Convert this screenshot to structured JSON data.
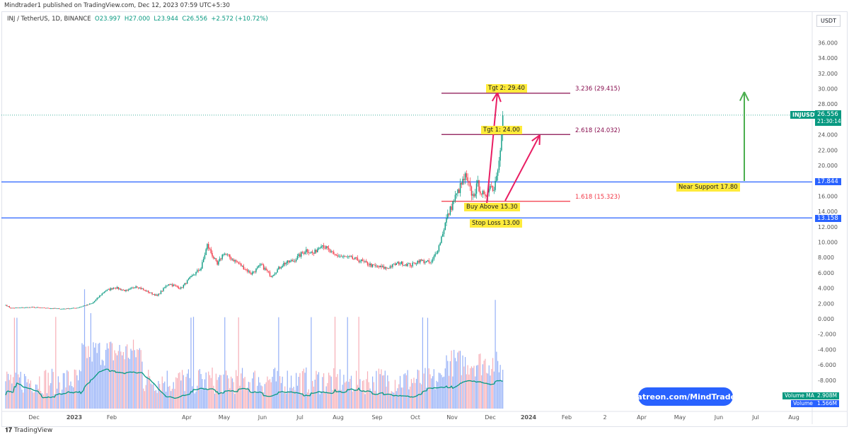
{
  "header": {
    "publisher": "Mindtrader1 published on TradingView.com, Dec 12, 2023 07:59 UTC+5:30"
  },
  "legend": {
    "symbol": "INJ / TetherUS, 1D, BINANCE",
    "open": "O23.997",
    "high": "H27.000",
    "low": "L23.944",
    "close": "C26.556",
    "change": "+2.572 (+10.72%)"
  },
  "price_scale": {
    "currency": "USDT",
    "symbol_tag": "INJUSDT",
    "last_price": "26.556",
    "countdown": "21:30:14",
    "level_1": "17.844",
    "level_2": "13.158"
  },
  "annotations": {
    "tgt2": "Tgt 2: 29.40",
    "tgt1": "Tgt 1: 24.00",
    "buy": "Buy Above 15.30",
    "stop": "Stop Loss 13.00",
    "support": "Near Support 17.80",
    "fib_3236": "3.236 (29.415)",
    "fib_2618": "2.618 (24.032)",
    "fib_1618": "1.618 (15.323)"
  },
  "volume": {
    "ma_label": "Volume MA",
    "ma_value": "2.908M",
    "label": "Volume",
    "value": "1.566M"
  },
  "watermark": {
    "patreon": "patreon.com/MindTrader"
  },
  "footer": {
    "brand": "TradingView"
  },
  "colors": {
    "up": "#089981",
    "down": "#f23645",
    "level": "#2962ff",
    "fib_top": "#880e4f",
    "fib_low": "#f23645",
    "arrow": "#e91e63",
    "green_arrow": "#4caf50"
  },
  "chart_data": {
    "type": "candlestick",
    "title": "INJ / TetherUS, 1D, BINANCE",
    "ylim": [
      -9,
      37
    ],
    "y_ticks": [
      "36.000",
      "34.000",
      "32.000",
      "30.000",
      "28.000",
      "26.000",
      "24.000",
      "22.000",
      "20.000",
      "18.000",
      "16.000",
      "14.000",
      "12.000",
      "10.000",
      "8.000",
      "6.000",
      "4.000",
      "2.000",
      "0.000",
      "-2.000",
      "-4.000",
      "-6.000",
      "-8.000"
    ],
    "x_ticks": [
      "Dec",
      "2023",
      "Feb",
      "Apr",
      "May",
      "Jun",
      "Jul",
      "Aug",
      "Sep",
      "Oct",
      "Nov",
      "Dec",
      "2024",
      "Feb",
      "2",
      "Apr",
      "May",
      "Jun",
      "Jul",
      "Aug"
    ],
    "horizontal_levels": [
      17.844,
      13.158
    ],
    "fib_levels": [
      {
        "ratio": 3.236,
        "price": 29.415
      },
      {
        "ratio": 2.618,
        "price": 24.032
      },
      {
        "ratio": 1.618,
        "price": 15.323
      }
    ],
    "approximate_closes": [
      [
        "2022-11-10",
        1.8
      ],
      [
        "2022-11-14",
        1.4
      ],
      [
        "2022-12-01",
        1.5
      ],
      [
        "2022-12-25",
        1.3
      ],
      [
        "2023-01-05",
        1.4
      ],
      [
        "2023-01-18",
        2.0
      ],
      [
        "2023-01-28",
        3.6
      ],
      [
        "2023-02-05",
        4.1
      ],
      [
        "2023-02-15",
        3.6
      ],
      [
        "2023-02-22",
        4.3
      ],
      [
        "2023-03-01",
        3.7
      ],
      [
        "2023-03-11",
        3.0
      ],
      [
        "2023-03-20",
        4.6
      ],
      [
        "2023-03-30",
        4.0
      ],
      [
        "2023-04-08",
        5.6
      ],
      [
        "2023-04-15",
        6.6
      ],
      [
        "2023-04-20",
        9.6
      ],
      [
        "2023-04-28",
        7.0
      ],
      [
        "2023-05-03",
        8.6
      ],
      [
        "2023-05-15",
        7.2
      ],
      [
        "2023-05-25",
        5.9
      ],
      [
        "2023-06-02",
        7.0
      ],
      [
        "2023-06-10",
        5.6
      ],
      [
        "2023-06-20",
        7.2
      ],
      [
        "2023-06-28",
        7.6
      ],
      [
        "2023-07-08",
        9.0
      ],
      [
        "2023-07-14",
        8.5
      ],
      [
        "2023-07-20",
        9.8
      ],
      [
        "2023-07-30",
        8.3
      ],
      [
        "2023-08-10",
        8.0
      ],
      [
        "2023-08-20",
        7.6
      ],
      [
        "2023-08-30",
        6.9
      ],
      [
        "2023-09-10",
        6.6
      ],
      [
        "2023-09-20",
        7.3
      ],
      [
        "2023-09-30",
        7.0
      ],
      [
        "2023-10-06",
        7.6
      ],
      [
        "2023-10-16",
        7.3
      ],
      [
        "2023-10-22",
        9.5
      ],
      [
        "2023-10-28",
        13.0
      ],
      [
        "2023-11-03",
        15.5
      ],
      [
        "2023-11-08",
        17.2
      ],
      [
        "2023-11-12",
        18.5
      ],
      [
        "2023-11-18",
        16.0
      ],
      [
        "2023-11-22",
        17.5
      ],
      [
        "2023-11-28",
        15.5
      ],
      [
        "2023-12-01",
        17.5
      ],
      [
        "2023-12-05",
        17.0
      ],
      [
        "2023-12-08",
        20.0
      ],
      [
        "2023-12-11",
        23.9
      ],
      [
        "2023-12-12",
        26.556
      ]
    ]
  }
}
